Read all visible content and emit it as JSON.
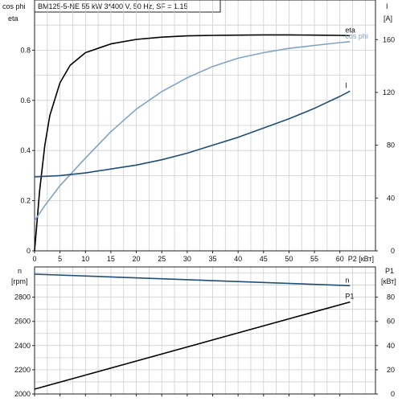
{
  "header": {
    "title": "BM125-5-NE   55 kW   3*400 V, 50 Hz, SF = 1.15"
  },
  "chart_data": [
    {
      "type": "line",
      "title": "BM125-5-NE   55 kW   3*400 V, 50 Hz, SF = 1.15",
      "xlabel": "P2 [кВт]",
      "ylabel_left": [
        "cos phi",
        "eta"
      ],
      "ylabel_right": [
        "I",
        "[A]"
      ],
      "xlim": [
        0,
        67
      ],
      "ylim_left": [
        0,
        1.0
      ],
      "ylim_right": [
        0,
        190
      ],
      "x_ticks": [
        "0",
        "5",
        "10",
        "15",
        "20",
        "25",
        "30",
        "35",
        "40",
        "45",
        "50",
        "55",
        "60"
      ],
      "y_ticks_left": [
        "0",
        "0.2",
        "0.4",
        "0.6",
        "0.8"
      ],
      "y_ticks_right": [
        "0",
        "40",
        "80",
        "120",
        "160"
      ],
      "grid": true,
      "series": [
        {
          "name": "eta",
          "axis": "left",
          "color": "#000000",
          "x": [
            0,
            1,
            2,
            3,
            5,
            7,
            10,
            15,
            20,
            25,
            30,
            35,
            40,
            45,
            50,
            55,
            60,
            62
          ],
          "y": [
            0.0,
            0.24,
            0.42,
            0.54,
            0.67,
            0.74,
            0.79,
            0.825,
            0.843,
            0.852,
            0.857,
            0.859,
            0.86,
            0.861,
            0.861,
            0.86,
            0.859,
            0.858
          ]
        },
        {
          "name": "cos phi",
          "axis": "left",
          "color": "#7fa3c6",
          "x": [
            0,
            2,
            5,
            10,
            15,
            20,
            25,
            30,
            35,
            40,
            45,
            50,
            55,
            60,
            62
          ],
          "y": [
            0.12,
            0.18,
            0.26,
            0.37,
            0.475,
            0.565,
            0.635,
            0.69,
            0.735,
            0.768,
            0.79,
            0.807,
            0.819,
            0.83,
            0.834
          ]
        },
        {
          "name": "I",
          "axis": "right",
          "color": "#1f4e79",
          "x": [
            0,
            5,
            10,
            15,
            20,
            25,
            30,
            35,
            40,
            45,
            50,
            55,
            60,
            62
          ],
          "y": [
            56,
            57,
            59,
            62,
            65,
            69,
            74,
            80,
            86,
            93,
            100,
            108,
            117,
            121
          ]
        }
      ]
    },
    {
      "type": "line",
      "xlabel": "P2 [кВт]",
      "ylabel_left": [
        "n",
        "[rpm]"
      ],
      "ylabel_right": [
        "P1",
        "[кВт]"
      ],
      "xlim": [
        0,
        67
      ],
      "ylim_left": [
        2000,
        3050
      ],
      "ylim_right": [
        0,
        105
      ],
      "x_ticks": [
        "0",
        "5",
        "10",
        "15",
        "20",
        "25",
        "30",
        "35",
        "40",
        "45",
        "50",
        "55",
        "60"
      ],
      "y_ticks_left": [
        "2000",
        "2200",
        "2400",
        "2600",
        "2800"
      ],
      "y_ticks_right": [
        "0",
        "20",
        "40",
        "60",
        "80"
      ],
      "grid": true,
      "series": [
        {
          "name": "n",
          "axis": "left",
          "color": "#1f4e79",
          "x": [
            0,
            62
          ],
          "y": [
            2990,
            2895
          ]
        },
        {
          "name": "P1",
          "axis": "right",
          "color": "#000000",
          "x": [
            0,
            62
          ],
          "y": [
            4,
            76
          ]
        }
      ]
    }
  ]
}
